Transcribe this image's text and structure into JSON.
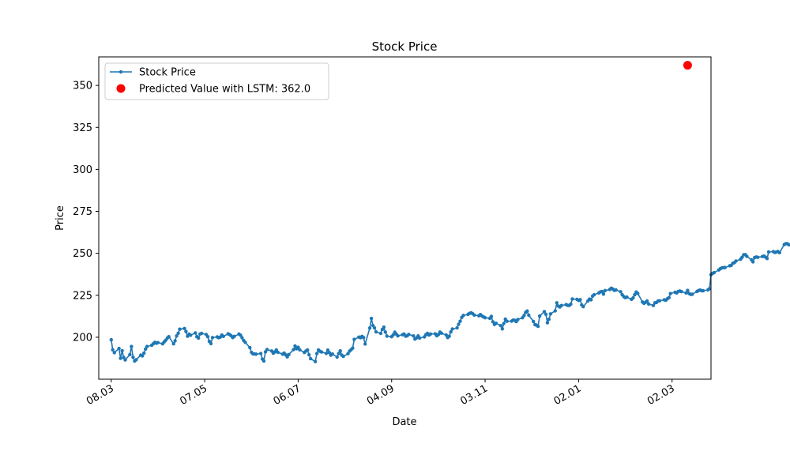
{
  "chart_data": {
    "type": "line",
    "title": "Stock Price",
    "xlabel": "Date",
    "ylabel": "Price",
    "x_start": "2023-03-08",
    "x_end": "2024-03-08",
    "xlim": [
      "2023-02-28",
      "2024-03-27"
    ],
    "ylim": [
      175,
      367
    ],
    "x_ticks": [
      {
        "date": "2023-03-08",
        "label": "08.03"
      },
      {
        "date": "2023-05-07",
        "label": "07.05"
      },
      {
        "date": "2023-07-06",
        "label": "06.07"
      },
      {
        "date": "2023-09-04",
        "label": "04.09"
      },
      {
        "date": "2023-11-03",
        "label": "03.11"
      },
      {
        "date": "2024-01-02",
        "label": "02.01"
      },
      {
        "date": "2024-03-02",
        "label": "02.03"
      }
    ],
    "y_ticks": [
      200,
      225,
      250,
      275,
      300,
      325,
      350
    ],
    "legend": {
      "position": "top-left",
      "entries": [
        "Stock Price",
        "Predicted Value with LSTM: 362.0"
      ]
    },
    "series": [
      {
        "name": "Stock Price",
        "color": "#1f77b4",
        "marker": "dot",
        "values": [
          198.5,
          192.5,
          190.8,
          193.3,
          187.4,
          192.0,
          188.0,
          186.5,
          189.7,
          194.5,
          188.1,
          185.8,
          186.6,
          189.3,
          188.9,
          190.5,
          193.0,
          194.5,
          195.2,
          196.1,
          197.0,
          196.4,
          196.8,
          196.1,
          197.2,
          198.2,
          199.5,
          200.3,
          196.1,
          197.8,
          200.8,
          202.4,
          204.8,
          205.2,
          203.4,
          200.6,
          201.8,
          201.2,
          202.6,
          200.3,
          199.5,
          201.9,
          202.3,
          201.6,
          200.3,
          197.5,
          196.2,
          199.8,
          200.2,
          199.7,
          200.1,
          201.3,
          200.5,
          202.0,
          201.6,
          200.9,
          199.8,
          200.5,
          201.9,
          201.2,
          199.7,
          198.1,
          197.0,
          193.8,
          191.0,
          190.1,
          190.0,
          189.9,
          190.3,
          187.0,
          185.8,
          191.3,
          192.7,
          191.8,
          190.5,
          191.2,
          192.4,
          191.0,
          189.9,
          190.6,
          189.5,
          188.3,
          189.7,
          192.6,
          194.8,
          193.1,
          194.0,
          192.5,
          190.9,
          191.8,
          192.4,
          189.6,
          187.2,
          185.5,
          190.3,
          192.4,
          191.6,
          191.2,
          190.4,
          192.3,
          190.8,
          189.3,
          190.0,
          188.2,
          190.3,
          191.9,
          189.3,
          188.6,
          190.2,
          191.7,
          192.6,
          193.5,
          198.7,
          200.1,
          199.7,
          200.5,
          199.8,
          196.0,
          205.5,
          211.2,
          207.0,
          205.6,
          203.2,
          202.3,
          204.6,
          206.0,
          203.1,
          200.7,
          200.3,
          201.4,
          203.0,
          201.8,
          200.8,
          201.5,
          201.9,
          200.6,
          200.9,
          201.7,
          200.8,
          198.9,
          199.6,
          200.8,
          199.5,
          200.2,
          201.5,
          202.3,
          201.3,
          201.9,
          202.0,
          200.9,
          201.6,
          203.1,
          202.4,
          201.3,
          199.8,
          200.6,
          203.2,
          204.9,
          205.6,
          207.7,
          209.5,
          211.8,
          213.0,
          213.6,
          214.2,
          214.6,
          214.0,
          213.2,
          212.8,
          213.5,
          212.7,
          212.1,
          211.6,
          211.3,
          212.4,
          209.2,
          207.6,
          208.3,
          206.9,
          205.0,
          208.2,
          210.8,
          209.5,
          209.6,
          210.2,
          210.1,
          209.3,
          210.6,
          211.6,
          213.0,
          214.7,
          215.6,
          213.1,
          209.4,
          207.5,
          207.2,
          206.5,
          212.6,
          215.3,
          213.7,
          208.6,
          210.7,
          213.9,
          215.7,
          220.5,
          218.6,
          218.0,
          218.9,
          219.4,
          219.0,
          218.9,
          219.7,
          222.8,
          222.6,
          221.9,
          222.4,
          219.3,
          218.2,
          221.6,
          222.7,
          222.3,
          224.5,
          225.3,
          226.4,
          227.0,
          227.2,
          225.7,
          227.8,
          228.4,
          229.2,
          228.7,
          227.9,
          228.2,
          227.1,
          225.3,
          224.2,
          223.6,
          223.9,
          222.6,
          223.4,
          225.3,
          226.9,
          226.1,
          221.0,
          220.2,
          220.8,
          221.6,
          219.8,
          218.9,
          220.5,
          220.7,
          221.6,
          221.7,
          222.3,
          222.0,
          222.9,
          223.6,
          226.0,
          226.8,
          226.4,
          227.3,
          227.5,
          227.2,
          226.4,
          227.9,
          226.0,
          225.5,
          225.6,
          227.3,
          227.8,
          228.1,
          227.7,
          227.7,
          228.2,
          228.9,
          237.2,
          238.0,
          238.5,
          240.1,
          240.8,
          241.3,
          241.5,
          241.5,
          242.6,
          242.8,
          244.1,
          244.4,
          245.4,
          246.5,
          247.6,
          249.1,
          249.2,
          248.2,
          246.1,
          244.9,
          247.4,
          247.8,
          247.6,
          248.1,
          248.3,
          247.7,
          246.9,
          250.8,
          251.0,
          250.5,
          250.8,
          251.0,
          250.4,
          255.2,
          255.7,
          255.7,
          255.1,
          255.0,
          254.8,
          252.8,
          251.5,
          250.7,
          250.1,
          249.3,
          248.4,
          249.7,
          250.4,
          249.0,
          248.9
        ]
      },
      {
        "name": "Predicted Value with LSTM: 362.0",
        "color": "#ff0000",
        "marker": "large-dot",
        "points": [
          {
            "x": "2024-03-12",
            "y": 362.0
          }
        ]
      }
    ]
  }
}
